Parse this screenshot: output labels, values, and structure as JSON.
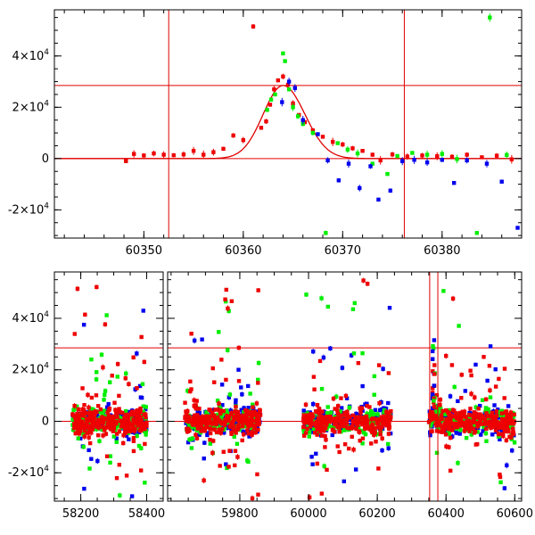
{
  "chart_data": [
    {
      "type": "scatter",
      "x_ticks": [
        {
          "value": 60350,
          "label": "60350"
        },
        {
          "value": 60360,
          "label": "60360"
        },
        {
          "value": 60370,
          "label": "60370"
        },
        {
          "value": 60380,
          "label": "60380"
        }
      ],
      "y_ticks": [
        {
          "value": -20000,
          "base": "-2×10",
          "exp": "4"
        },
        {
          "value": 0,
          "base": "0",
          "exp": ""
        },
        {
          "value": 20000,
          "base": "2×10",
          "exp": "4"
        },
        {
          "value": 40000,
          "base": "4×10",
          "exp": "4"
        }
      ],
      "xlim": [
        60341,
        60388
      ],
      "ylim": [
        -31000,
        58000
      ],
      "hlines": [
        0,
        28500
      ],
      "vlines": [
        60352.5,
        60376.2
      ],
      "model": {
        "peak_x": 60364.0,
        "peak_y": 28500,
        "rise_tau": 2.0,
        "decay_tau": 2.2
      },
      "colors": {
        "red": "#ee0000",
        "green": "#00ee00",
        "blue": "#0000ee"
      },
      "series": [
        {
          "color": "red",
          "points": [
            [
              60348.2,
              -1000
            ],
            [
              60349.0,
              1800
            ],
            [
              60350.0,
              1200
            ],
            [
              60351.0,
              2000
            ],
            [
              60352.0,
              1500
            ],
            [
              60353.0,
              1300
            ],
            [
              60354.0,
              1600
            ],
            [
              60355.0,
              3000
            ],
            [
              60356.0,
              1500
            ],
            [
              60357.0,
              2500
            ],
            [
              60358.0,
              3800
            ],
            [
              60359.0,
              9000
            ],
            [
              60360.0,
              7200
            ],
            [
              60361.0,
              51500
            ],
            [
              60361.8,
              12000
            ],
            [
              60362.3,
              14500
            ],
            [
              60362.7,
              21000
            ],
            [
              60363.1,
              27000
            ],
            [
              60363.5,
              30500
            ],
            [
              60364.0,
              32000
            ],
            [
              60364.5,
              28800
            ],
            [
              60365.0,
              21500
            ],
            [
              60365.6,
              17000
            ],
            [
              60366.2,
              14200
            ],
            [
              60367.0,
              11000
            ],
            [
              60368.0,
              8500
            ],
            [
              60369.0,
              6500
            ],
            [
              60370.0,
              5500
            ],
            [
              60371.0,
              4000
            ],
            [
              60372.0,
              3000
            ],
            [
              60373.0,
              1500
            ],
            [
              60373.8,
              -700
            ],
            [
              60375.0,
              1600
            ],
            [
              60376.5,
              800
            ],
            [
              60378.0,
              1200
            ],
            [
              60379.5,
              900
            ],
            [
              60381.0,
              700
            ],
            [
              60382.5,
              1500
            ],
            [
              60384.0,
              500
            ],
            [
              60385.5,
              1100
            ],
            [
              60387.0,
              -300
            ]
          ]
        },
        {
          "color": "green",
          "points": [
            [
              60362.4,
              19000
            ],
            [
              60362.8,
              23000
            ],
            [
              60363.2,
              25000
            ],
            [
              60364.0,
              41000
            ],
            [
              60364.2,
              38000
            ],
            [
              60364.6,
              27000
            ],
            [
              60365.0,
              20000
            ],
            [
              60365.5,
              16500
            ],
            [
              60366.0,
              13500
            ],
            [
              60367.0,
              10000
            ],
            [
              60368.3,
              -29000
            ],
            [
              60369.5,
              6000
            ],
            [
              60370.5,
              3500
            ],
            [
              60371.5,
              2000
            ],
            [
              60373.0,
              -2000
            ],
            [
              60374.5,
              -6000
            ],
            [
              60375.5,
              1000
            ],
            [
              60377.0,
              2200
            ],
            [
              60378.5,
              1500
            ],
            [
              60380.0,
              1800
            ],
            [
              60381.5,
              -200
            ],
            [
              60383.5,
              -29000
            ],
            [
              60384.8,
              55000
            ],
            [
              60386.5,
              1400
            ]
          ]
        },
        {
          "color": "blue",
          "points": [
            [
              60363.9,
              22000
            ],
            [
              60364.6,
              30000
            ],
            [
              60365.2,
              27500
            ],
            [
              60366.0,
              15000
            ],
            [
              60367.5,
              9500
            ],
            [
              60368.5,
              -700
            ],
            [
              60369.6,
              -8500
            ],
            [
              60370.6,
              -2000
            ],
            [
              60371.7,
              -11500
            ],
            [
              60372.8,
              -3000
            ],
            [
              60373.6,
              -16000
            ],
            [
              60374.8,
              -12500
            ],
            [
              60376.0,
              -1000
            ],
            [
              60377.2,
              -500
            ],
            [
              60378.5,
              -1500
            ],
            [
              60380.0,
              -500
            ],
            [
              60381.2,
              -9500
            ],
            [
              60382.5,
              -700
            ],
            [
              60384.5,
              -2000
            ],
            [
              60386.0,
              -9000
            ],
            [
              60387.6,
              -27000
            ]
          ]
        }
      ]
    },
    {
      "type": "scatter",
      "x_ticks": [
        {
          "value": 58200,
          "label": "58200"
        },
        {
          "value": 58400,
          "label": "58400"
        },
        {
          "value": 59800,
          "label": "59800"
        },
        {
          "value": 60000,
          "label": "60000"
        },
        {
          "value": 60200,
          "label": "60200"
        },
        {
          "value": 60400,
          "label": "60400"
        },
        {
          "value": 60600,
          "label": "60600"
        }
      ],
      "y_ticks": [
        {
          "value": -20000,
          "base": "-2×10",
          "exp": "4"
        },
        {
          "value": 0,
          "base": "0",
          "exp": ""
        },
        {
          "value": 20000,
          "base": "2×10",
          "exp": "4"
        },
        {
          "value": 40000,
          "base": "4×10",
          "exp": "4"
        }
      ],
      "segments": [
        {
          "xlim": [
            58120,
            58450
          ],
          "ticks": [
            58200,
            58400
          ]
        },
        {
          "xlim": [
            59590,
            60620
          ],
          "ticks": [
            59800,
            60000,
            60200,
            60400,
            60600
          ]
        }
      ],
      "ylim": [
        -31000,
        58000
      ],
      "hlines": [
        0,
        28500
      ],
      "vlines": [
        60352.5,
        60376.2
      ],
      "seasons": [
        [
          58175,
          58400
        ],
        [
          59640,
          59860
        ],
        [
          59985,
          60240
        ],
        [
          60350,
          60600
        ]
      ],
      "colors": {
        "red": "#ee0000",
        "green": "#00ee00",
        "blue": "#0000ee"
      }
    }
  ]
}
